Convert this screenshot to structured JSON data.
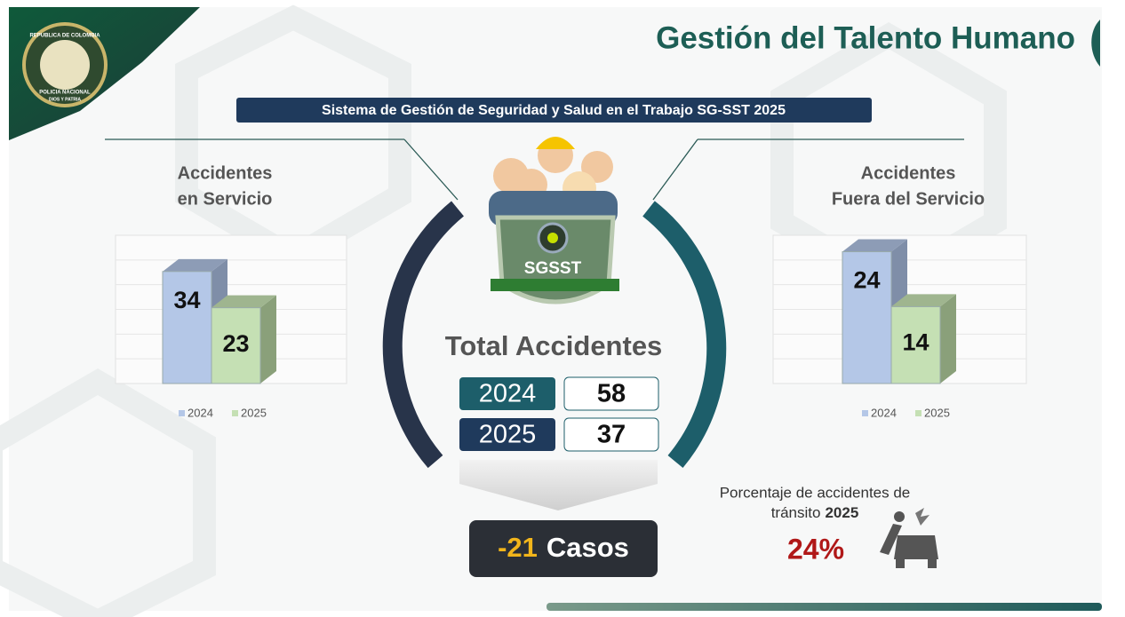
{
  "header": {
    "title": "Gestión del Talento Humano",
    "subtitle": "Sistema de Gestión de Seguridad y Salud en el Trabajo SG-SST 2025",
    "emblem": [
      "REPUBLICA DE COLOMBIA",
      "POLICIA NACIONAL",
      "DIOS Y PATRIA"
    ]
  },
  "chart_data": [
    {
      "type": "bar",
      "title": [
        "Accidentes",
        "en Servicio"
      ],
      "categories": [
        null
      ],
      "series": [
        {
          "name": "2024",
          "color": "#b4c7e7",
          "values": [
            34
          ]
        },
        {
          "name": "2025",
          "color": "#c5e0b4",
          "values": [
            23
          ]
        }
      ],
      "ylim": [
        0,
        45
      ],
      "legend": "bottom"
    },
    {
      "type": "bar",
      "title": [
        "Accidentes",
        "Fuera del Servicio"
      ],
      "categories": [
        null
      ],
      "series": [
        {
          "name": "2024",
          "color": "#b4c7e7",
          "values": [
            24
          ]
        },
        {
          "name": "2025",
          "color": "#c5e0b4",
          "values": [
            14
          ]
        }
      ],
      "ylim": [
        0,
        27
      ],
      "legend": "bottom"
    }
  ],
  "center": {
    "badge": "SGSST",
    "title": "Total Accidentes",
    "rows": [
      {
        "year": "2024",
        "value": 58
      },
      {
        "year": "2025",
        "value": 37
      }
    ],
    "difference": {
      "value": -21,
      "label": "Casos"
    }
  },
  "traffic": {
    "caption": [
      "Porcentaje de accidentes de",
      "tránsito"
    ],
    "year": "2025",
    "percent": "24%"
  }
}
